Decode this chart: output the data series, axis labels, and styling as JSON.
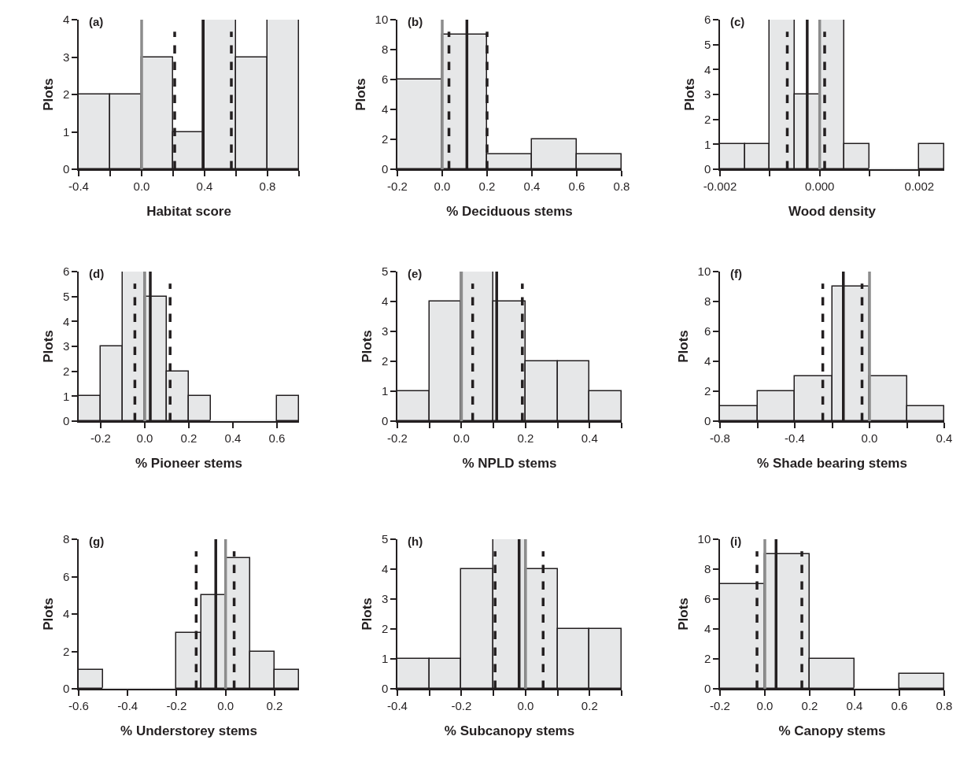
{
  "chart_data": [
    {
      "type": "histogram",
      "title": "(a)",
      "xlabel": "Habitat score",
      "ylabel": "Plots",
      "color": "#e6e7e8",
      "bins": [
        -0.4,
        -0.2,
        0.0,
        0.2,
        0.4,
        0.6,
        0.8,
        1.0
      ],
      "values": [
        2,
        2,
        3,
        1,
        4,
        3,
        4
      ],
      "xlim": [
        -0.4,
        1.0
      ],
      "xticks": [
        -0.4,
        {
          "value": -0.2,
          "label": null
        },
        {
          "value": 0,
          "label": "0.0"
        },
        {
          "value": 0.2,
          "label": null
        },
        0.4,
        {
          "value": 0.6,
          "label": null
        },
        0.8,
        {
          "value": 1.0,
          "label": null
        }
      ],
      "ylim": [
        0,
        4
      ],
      "yticks": [
        0,
        1,
        2,
        3,
        4
      ],
      "grid": false,
      "ref_lines": [
        {
          "axis": "x",
          "value": 0,
          "color": "#8c8c8c",
          "line_style": "solid"
        },
        {
          "axis": "x",
          "value": 0.39,
          "color": "#231f20",
          "line_style": "solid"
        },
        {
          "axis": "x",
          "value": 0.21,
          "color": "#231f20",
          "line_style": "dashed"
        },
        {
          "axis": "x",
          "value": 0.57,
          "color": "#231f20",
          "line_style": "dashed"
        }
      ]
    },
    {
      "type": "histogram",
      "title": "(b)",
      "xlabel": "% Deciduous stems",
      "ylabel": "Plots",
      "color": "#e6e7e8",
      "bins": [
        -0.2,
        0.0,
        0.2,
        0.4,
        0.6,
        0.8
      ],
      "values": [
        6,
        9,
        1,
        2,
        1
      ],
      "xlim": [
        -0.2,
        0.8
      ],
      "xticks": [
        -0.2,
        {
          "value": 0,
          "label": "0.0"
        },
        0.2,
        0.4,
        0.6,
        0.8
      ],
      "ylim": [
        0,
        10
      ],
      "yticks": [
        0,
        2,
        4,
        6,
        8,
        10
      ],
      "grid": false,
      "ref_lines": [
        {
          "axis": "x",
          "value": 0,
          "color": "#8c8c8c",
          "line_style": "solid"
        },
        {
          "axis": "x",
          "value": 0.11,
          "color": "#231f20",
          "line_style": "solid"
        },
        {
          "axis": "x",
          "value": 0.03,
          "color": "#231f20",
          "line_style": "dashed"
        },
        {
          "axis": "x",
          "value": 0.2,
          "color": "#231f20",
          "line_style": "dashed"
        }
      ]
    },
    {
      "type": "histogram",
      "title": "(c)",
      "xlabel": "Wood density",
      "ylabel": "Plots",
      "color": "#e6e7e8",
      "bins": [
        -0.002,
        -0.0015,
        -0.001,
        -0.0005,
        0.0,
        0.0005,
        0.001,
        0.0015,
        0.002,
        0.0025
      ],
      "values": [
        1,
        1,
        6,
        3,
        6,
        1,
        0,
        0,
        1
      ],
      "xlim": [
        -0.002,
        0.0025
      ],
      "xticks": [
        -0.002,
        {
          "value": -0.001,
          "label": null
        },
        {
          "value": 0,
          "label": "0.000"
        },
        {
          "value": 0.001,
          "label": null
        },
        0.002
      ],
      "ylim": [
        0,
        6
      ],
      "yticks": [
        0,
        1,
        2,
        3,
        4,
        5,
        6
      ],
      "grid": false,
      "ref_lines": [
        {
          "axis": "x",
          "value": 0,
          "color": "#8c8c8c",
          "line_style": "solid"
        },
        {
          "axis": "x",
          "value": -0.00025,
          "color": "#231f20",
          "line_style": "solid"
        },
        {
          "axis": "x",
          "value": -0.00065,
          "color": "#231f20",
          "line_style": "dashed"
        },
        {
          "axis": "x",
          "value": 0.0001,
          "color": "#231f20",
          "line_style": "dashed"
        }
      ]
    },
    {
      "type": "histogram",
      "title": "(d)",
      "xlabel": "% Pioneer stems",
      "ylabel": "Plots",
      "color": "#e6e7e8",
      "bins": [
        -0.3,
        -0.2,
        -0.1,
        0.0,
        0.1,
        0.2,
        0.3,
        0.4,
        0.5,
        0.6,
        0.7
      ],
      "values": [
        1,
        3,
        6,
        5,
        2,
        1,
        0,
        0,
        0,
        1
      ],
      "xlim": [
        -0.3,
        0.7
      ],
      "xticks": [
        -0.2,
        {
          "value": 0,
          "label": "0.0"
        },
        0.2,
        0.4,
        0.6
      ],
      "ylim": [
        0,
        6
      ],
      "yticks": [
        0,
        1,
        2,
        3,
        4,
        5,
        6
      ],
      "grid": false,
      "ref_lines": [
        {
          "axis": "x",
          "value": 0,
          "color": "#8c8c8c",
          "line_style": "solid"
        },
        {
          "axis": "x",
          "value": 0.025,
          "color": "#231f20",
          "line_style": "solid"
        },
        {
          "axis": "x",
          "value": -0.045,
          "color": "#231f20",
          "line_style": "dashed"
        },
        {
          "axis": "x",
          "value": 0.115,
          "color": "#231f20",
          "line_style": "dashed"
        }
      ]
    },
    {
      "type": "histogram",
      "title": "(e)",
      "xlabel": "% NPLD stems",
      "ylabel": "Plots",
      "color": "#e6e7e8",
      "bins": [
        -0.2,
        -0.1,
        0.0,
        0.1,
        0.2,
        0.3,
        0.4,
        0.5
      ],
      "values": [
        1,
        4,
        5,
        4,
        2,
        2,
        1
      ],
      "xlim": [
        -0.2,
        0.5
      ],
      "xticks": [
        -0.2,
        {
          "value": -0.1,
          "label": null
        },
        {
          "value": 0,
          "label": "0.0"
        },
        {
          "value": 0.1,
          "label": null
        },
        0.2,
        {
          "value": 0.3,
          "label": null
        },
        0.4,
        {
          "value": 0.5,
          "label": null
        }
      ],
      "ylim": [
        0,
        5
      ],
      "yticks": [
        0,
        1,
        2,
        3,
        4,
        5
      ],
      "grid": false,
      "ref_lines": [
        {
          "axis": "x",
          "value": 0,
          "color": "#8c8c8c",
          "line_style": "solid"
        },
        {
          "axis": "x",
          "value": 0.11,
          "color": "#231f20",
          "line_style": "solid"
        },
        {
          "axis": "x",
          "value": 0.035,
          "color": "#231f20",
          "line_style": "dashed"
        },
        {
          "axis": "x",
          "value": 0.19,
          "color": "#231f20",
          "line_style": "dashed"
        }
      ]
    },
    {
      "type": "histogram",
      "title": "(f)",
      "xlabel": "% Shade bearing stems",
      "ylabel": "Plots",
      "color": "#e6e7e8",
      "bins": [
        -0.8,
        -0.6,
        -0.4,
        -0.2,
        0.0,
        0.2,
        0.4
      ],
      "values": [
        1,
        2,
        3,
        9,
        3,
        1
      ],
      "xlim": [
        -0.8,
        0.4
      ],
      "xticks": [
        -0.8,
        {
          "value": -0.6,
          "label": null
        },
        -0.4,
        {
          "value": -0.2,
          "label": null
        },
        {
          "value": 0,
          "label": "0.0"
        },
        {
          "value": 0.2,
          "label": null
        },
        0.4
      ],
      "ylim": [
        0,
        10
      ],
      "yticks": [
        0,
        2,
        4,
        6,
        8,
        10
      ],
      "grid": false,
      "ref_lines": [
        {
          "axis": "x",
          "value": 0,
          "color": "#8c8c8c",
          "line_style": "solid"
        },
        {
          "axis": "x",
          "value": -0.14,
          "color": "#231f20",
          "line_style": "solid"
        },
        {
          "axis": "x",
          "value": -0.25,
          "color": "#231f20",
          "line_style": "dashed"
        },
        {
          "axis": "x",
          "value": -0.04,
          "color": "#231f20",
          "line_style": "dashed"
        }
      ]
    },
    {
      "type": "histogram",
      "title": "(g)",
      "xlabel": "% Understorey stems",
      "ylabel": "Plots",
      "color": "#e6e7e8",
      "bins": [
        -0.6,
        -0.5,
        -0.4,
        -0.3,
        -0.2,
        -0.1,
        0.0,
        0.1,
        0.2,
        0.3
      ],
      "values": [
        1,
        0,
        0,
        0,
        3,
        5,
        7,
        2,
        1
      ],
      "xlim": [
        -0.6,
        0.3
      ],
      "xticks": [
        -0.6,
        -0.4,
        -0.2,
        {
          "value": 0,
          "label": "0.0"
        },
        0.2
      ],
      "ylim": [
        0,
        8
      ],
      "yticks": [
        0,
        2,
        4,
        6,
        8
      ],
      "grid": false,
      "ref_lines": [
        {
          "axis": "x",
          "value": 0,
          "color": "#8c8c8c",
          "line_style": "solid"
        },
        {
          "axis": "x",
          "value": -0.04,
          "color": "#231f20",
          "line_style": "solid"
        },
        {
          "axis": "x",
          "value": -0.12,
          "color": "#231f20",
          "line_style": "dashed"
        },
        {
          "axis": "x",
          "value": 0.035,
          "color": "#231f20",
          "line_style": "dashed"
        }
      ]
    },
    {
      "type": "histogram",
      "title": "(h)",
      "xlabel": "% Subcanopy stems",
      "ylabel": "Plots",
      "color": "#e6e7e8",
      "bins": [
        -0.4,
        -0.3,
        -0.2,
        -0.1,
        0.0,
        0.1,
        0.2,
        0.3
      ],
      "values": [
        1,
        1,
        4,
        5,
        4,
        2,
        2
      ],
      "xlim": [
        -0.4,
        0.3
      ],
      "xticks": [
        -0.4,
        {
          "value": -0.3,
          "label": null
        },
        -0.2,
        {
          "value": -0.1,
          "label": null
        },
        {
          "value": 0,
          "label": "0.0"
        },
        {
          "value": 0.1,
          "label": null
        },
        0.2,
        {
          "value": 0.3,
          "label": null
        }
      ],
      "ylim": [
        0,
        5
      ],
      "yticks": [
        0,
        1,
        2,
        3,
        4,
        5
      ],
      "grid": false,
      "ref_lines": [
        {
          "axis": "x",
          "value": 0,
          "color": "#8c8c8c",
          "line_style": "solid"
        },
        {
          "axis": "x",
          "value": -0.02,
          "color": "#231f20",
          "line_style": "solid"
        },
        {
          "axis": "x",
          "value": -0.095,
          "color": "#231f20",
          "line_style": "dashed"
        },
        {
          "axis": "x",
          "value": 0.055,
          "color": "#231f20",
          "line_style": "dashed"
        }
      ]
    },
    {
      "type": "histogram",
      "title": "(i)",
      "xlabel": "% Canopy stems",
      "ylabel": "Plots",
      "color": "#e6e7e8",
      "bins": [
        -0.2,
        0.0,
        0.2,
        0.4,
        0.6,
        0.8
      ],
      "values": [
        7,
        9,
        2,
        0,
        1
      ],
      "xlim": [
        -0.2,
        0.8
      ],
      "xticks": [
        -0.2,
        {
          "value": 0,
          "label": "0.0"
        },
        0.2,
        0.4,
        0.6,
        0.8
      ],
      "ylim": [
        0,
        10
      ],
      "yticks": [
        0,
        2,
        4,
        6,
        8,
        10
      ],
      "grid": false,
      "ref_lines": [
        {
          "axis": "x",
          "value": 0,
          "color": "#8c8c8c",
          "line_style": "solid"
        },
        {
          "axis": "x",
          "value": 0.05,
          "color": "#231f20",
          "line_style": "solid"
        },
        {
          "axis": "x",
          "value": -0.035,
          "color": "#231f20",
          "line_style": "dashed"
        },
        {
          "axis": "x",
          "value": 0.165,
          "color": "#231f20",
          "line_style": "dashed"
        }
      ]
    }
  ]
}
